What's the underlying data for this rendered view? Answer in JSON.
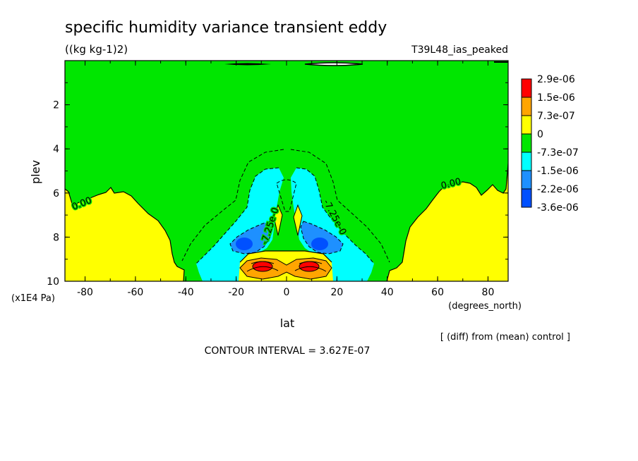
{
  "chart_data": {
    "type": "heatmap",
    "title": "specific humidity variance transient eddy",
    "units": "((kg kg-1)2)",
    "run_label": "T39L48_ias_peaked",
    "xlabel": "lat",
    "x_units": "(degrees_north)",
    "ylabel": "plev",
    "y_units": "(x1E4 Pa)",
    "x_ticks": [
      "-80",
      "-60",
      "-40",
      "-20",
      "0",
      "20",
      "40",
      "60",
      "80"
    ],
    "y_ticks": [
      "2",
      "4",
      "6",
      "8",
      "10"
    ],
    "xlim": [
      -88,
      88
    ],
    "ylim": [
      0,
      10
    ],
    "contour_labels": [
      "0.00",
      "0.00",
      "-7.25e-0",
      "-7.25e-0"
    ],
    "legend": {
      "placement": "right",
      "levels": [
        "2.9e-06",
        "1.5e-06",
        "7.3e-07",
        "0",
        "-7.3e-07",
        "-1.5e-06",
        "-2.2e-06",
        "-3.6e-06"
      ],
      "colors": [
        "#ff0000",
        "#ffa500",
        "#ffff00",
        "#00e600",
        "#00ffff",
        "#1e90ff",
        "#0050ff"
      ]
    },
    "note": "[ (diff) from (mean) control ]",
    "contour_interval": "CONTOUR INTERVAL = 3.627E-07"
  }
}
